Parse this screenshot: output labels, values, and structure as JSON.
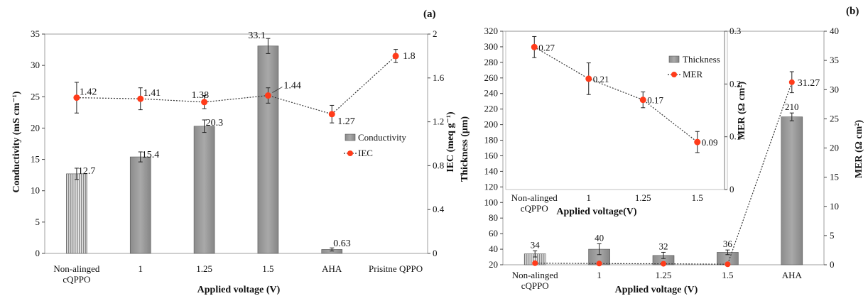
{
  "chart_data": [
    {
      "panel": "(a)",
      "type": "bar",
      "categories": [
        "Non-alinged\ncQPPO",
        "1",
        "1.25",
        "1.5",
        "AHA",
        "Prisitne QPPO"
      ],
      "xlabel": "Applied voltage (V)",
      "ylabel": "Conductivity (mS cm⁻¹)",
      "y2label": "IEC (meq g⁻¹)",
      "ylim": [
        0,
        35
      ],
      "yticks": [
        0,
        5,
        10,
        15,
        20,
        25,
        30,
        35
      ],
      "y2lim": [
        0,
        2
      ],
      "y2ticks": [
        "0",
        "0.4",
        "0.8",
        "1.2",
        "1.6",
        "2"
      ],
      "legend": [
        "Conductivity",
        "IEC"
      ],
      "legend_position": "right",
      "series": [
        {
          "name": "Conductivity",
          "type": "bar",
          "axis": "left",
          "values": [
            12.7,
            15.4,
            20.3,
            33.1,
            0.63,
            null
          ],
          "errors": [
            0.9,
            0.8,
            1.0,
            1.2,
            0.25,
            null
          ],
          "labels": [
            "12.7",
            "15.4",
            "20.3",
            "33.1",
            "0.63",
            ""
          ]
        },
        {
          "name": "IEC",
          "type": "line",
          "axis": "right",
          "values": [
            1.42,
            1.41,
            1.38,
            1.44,
            1.27,
            1.8
          ],
          "errors": [
            0.14,
            0.1,
            0.06,
            0.07,
            0.08,
            0.06
          ],
          "labels": [
            "1.42",
            "1.41",
            "1.38",
            "1.44",
            "1.27",
            "1.8"
          ]
        }
      ]
    },
    {
      "panel": "(b)",
      "type": "bar",
      "categories": [
        "Non-alinged\ncQPPO",
        "1",
        "1.25",
        "1.5",
        "AHA"
      ],
      "xlabel": "Applied voltage (V)",
      "ylabel": "Thickness (μm)",
      "y2label": "MER (Ω cm²)",
      "ylim": [
        20,
        320
      ],
      "yticks": [
        20,
        40,
        60,
        80,
        100,
        120,
        140,
        160,
        180,
        200,
        220,
        240,
        260,
        280,
        300,
        320
      ],
      "y2lim": [
        0,
        40
      ],
      "y2ticks": [
        0,
        5,
        10,
        15,
        20,
        25,
        30,
        35,
        40
      ],
      "series": [
        {
          "name": "Thickness",
          "type": "bar",
          "axis": "left",
          "values": [
            34,
            40,
            32,
            36,
            210
          ],
          "errors": [
            4,
            7,
            4,
            3,
            5
          ],
          "labels": [
            "34",
            "40",
            "32",
            "36",
            "210"
          ]
        },
        {
          "name": "MER",
          "type": "line",
          "axis": "right",
          "values": [
            0.27,
            0.21,
            0.17,
            0.09,
            31.27
          ],
          "errors": [
            0,
            0,
            0,
            0,
            1.8
          ],
          "labels": [
            "",
            "",
            "",
            "",
            "31.27"
          ]
        }
      ],
      "inset": {
        "type": "line",
        "categories": [
          "Non-alinged\ncQPPO",
          "1",
          "1.25",
          "1.5"
        ],
        "xlabel": "Applied voltage(V)",
        "ylabel": "MER (Ω cm²)",
        "ylim": [
          0,
          0.3
        ],
        "yticks": [
          "0",
          "0.1",
          "0.2",
          "0.3"
        ],
        "legend": [
          "Thickness",
          "MER"
        ],
        "legend_position": "top-right",
        "series": [
          {
            "name": "MER",
            "values": [
              0.27,
              0.21,
              0.17,
              0.09
            ],
            "errors": [
              0.02,
              0.03,
              0.015,
              0.02
            ],
            "labels": [
              "0.27",
              "0.21",
              "0.17",
              "0.09"
            ]
          }
        ]
      }
    }
  ]
}
